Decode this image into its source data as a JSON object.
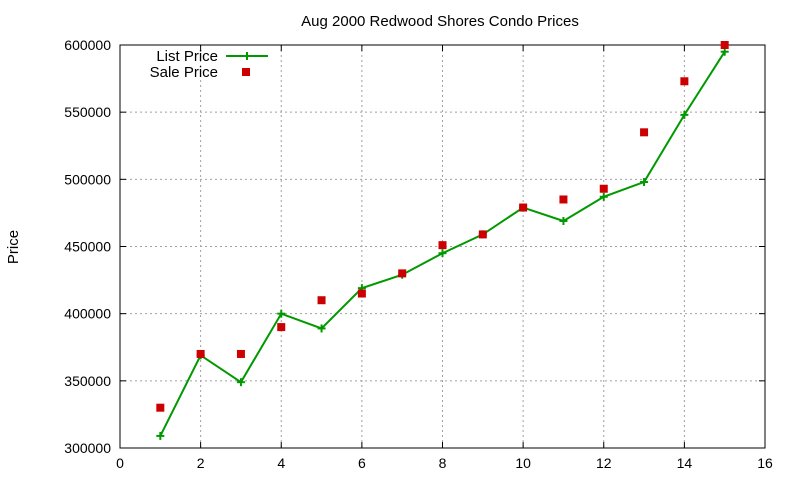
{
  "chart_data": {
    "type": "line",
    "title": "Aug 2000 Redwood Shores Condo Prices",
    "xlabel": "",
    "ylabel": "Price",
    "xlim": [
      0,
      16
    ],
    "ylim": [
      300000,
      600000
    ],
    "xticks": [
      0,
      2,
      4,
      6,
      8,
      10,
      12,
      14,
      16
    ],
    "yticks": [
      300000,
      350000,
      400000,
      450000,
      500000,
      550000,
      600000
    ],
    "grid": true,
    "legend_position": "top-left",
    "series": [
      {
        "name": "List Price",
        "style": "line-points",
        "marker": "plus",
        "color": "#009900",
        "x": [
          1,
          2,
          3,
          4,
          5,
          6,
          7,
          8,
          9,
          10,
          11,
          12,
          13,
          14,
          15
        ],
        "values": [
          309000,
          369000,
          349000,
          400000,
          389000,
          419000,
          429000,
          445000,
          459000,
          479000,
          469000,
          487000,
          498000,
          548000,
          595000
        ]
      },
      {
        "name": "Sale Price",
        "style": "points",
        "marker": "square",
        "color": "#cc0000",
        "x": [
          1,
          2,
          3,
          4,
          5,
          6,
          7,
          8,
          9,
          10,
          11,
          12,
          13,
          14,
          15
        ],
        "values": [
          330000,
          370000,
          370000,
          390000,
          410000,
          415000,
          430000,
          451000,
          459000,
          479000,
          485000,
          493000,
          535000,
          573000,
          600000
        ]
      }
    ]
  }
}
